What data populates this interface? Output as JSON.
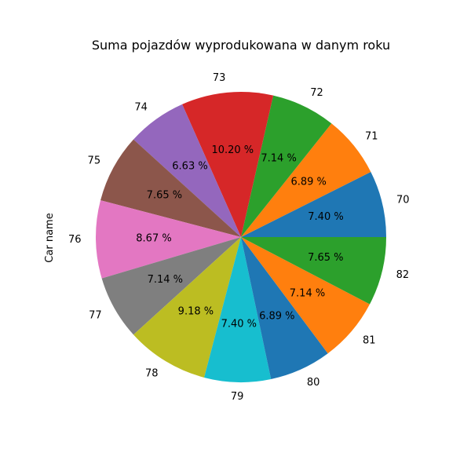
{
  "chart_data": {
    "type": "pie",
    "title": "Suma pojazdów wyprodukowana w danym roku",
    "ylabel": "Car name",
    "categories": [
      "70",
      "71",
      "72",
      "73",
      "74",
      "75",
      "76",
      "77",
      "78",
      "79",
      "80",
      "81",
      "82"
    ],
    "values": [
      7.4,
      6.89,
      7.14,
      10.2,
      6.63,
      7.65,
      8.67,
      7.14,
      9.18,
      7.4,
      6.89,
      7.14,
      7.65
    ],
    "percent_labels": [
      "7.40 %",
      "6.89 %",
      "7.14 %",
      "10.20 %",
      "6.63 %",
      "7.65 %",
      "8.67 %",
      "7.14 %",
      "9.18 %",
      "7.40 %",
      "6.89 %",
      "7.14 %",
      "7.65 %"
    ],
    "colors": [
      "#1f77b4",
      "#ff7f0e",
      "#2ca02c",
      "#d62728",
      "#9467bd",
      "#8c564b",
      "#e377c2",
      "#7f7f7f",
      "#bcbd22",
      "#17becf",
      "#1f77b4",
      "#ff7f0e",
      "#2ca02c"
    ],
    "start_angle": 0,
    "direction": "counterclockwise"
  }
}
